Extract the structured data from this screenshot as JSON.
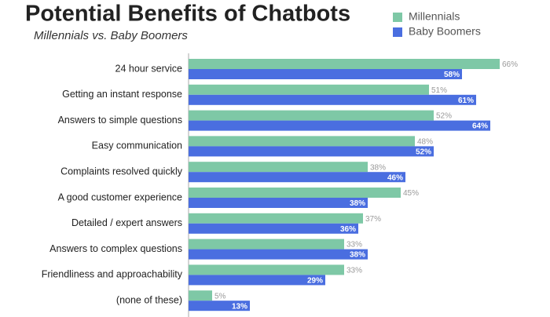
{
  "chart_data": {
    "type": "bar",
    "orientation": "horizontal",
    "title": "Potential Benefits of Chatbots",
    "subtitle": "Millennials vs. Baby Boomers",
    "categories": [
      "24 hour service",
      "Getting an instant response",
      "Answers to simple questions",
      "Easy communication",
      "Complaints resolved quickly",
      "A good customer experience",
      "Detailed / expert answers",
      "Answers to complex questions",
      "Friendliness and approachability",
      "(none of these)"
    ],
    "series": [
      {
        "name": "Millennials",
        "color": "#7ec8a6",
        "values": [
          66,
          51,
          52,
          48,
          38,
          45,
          37,
          33,
          33,
          5
        ],
        "value_labels": [
          "66%",
          "51%",
          "52%",
          "48%",
          "38%",
          "45%",
          "37%",
          "33%",
          "33%",
          "5%"
        ]
      },
      {
        "name": "Baby Boomers",
        "color": "#4a6ee0",
        "values": [
          58,
          61,
          64,
          52,
          46,
          38,
          36,
          38,
          29,
          13
        ],
        "value_labels": [
          "58%",
          "61%",
          "64%",
          "52%",
          "46%",
          "38%",
          "36%",
          "38%",
          "29%",
          "13%"
        ]
      }
    ],
    "legend": "top-right"
  }
}
